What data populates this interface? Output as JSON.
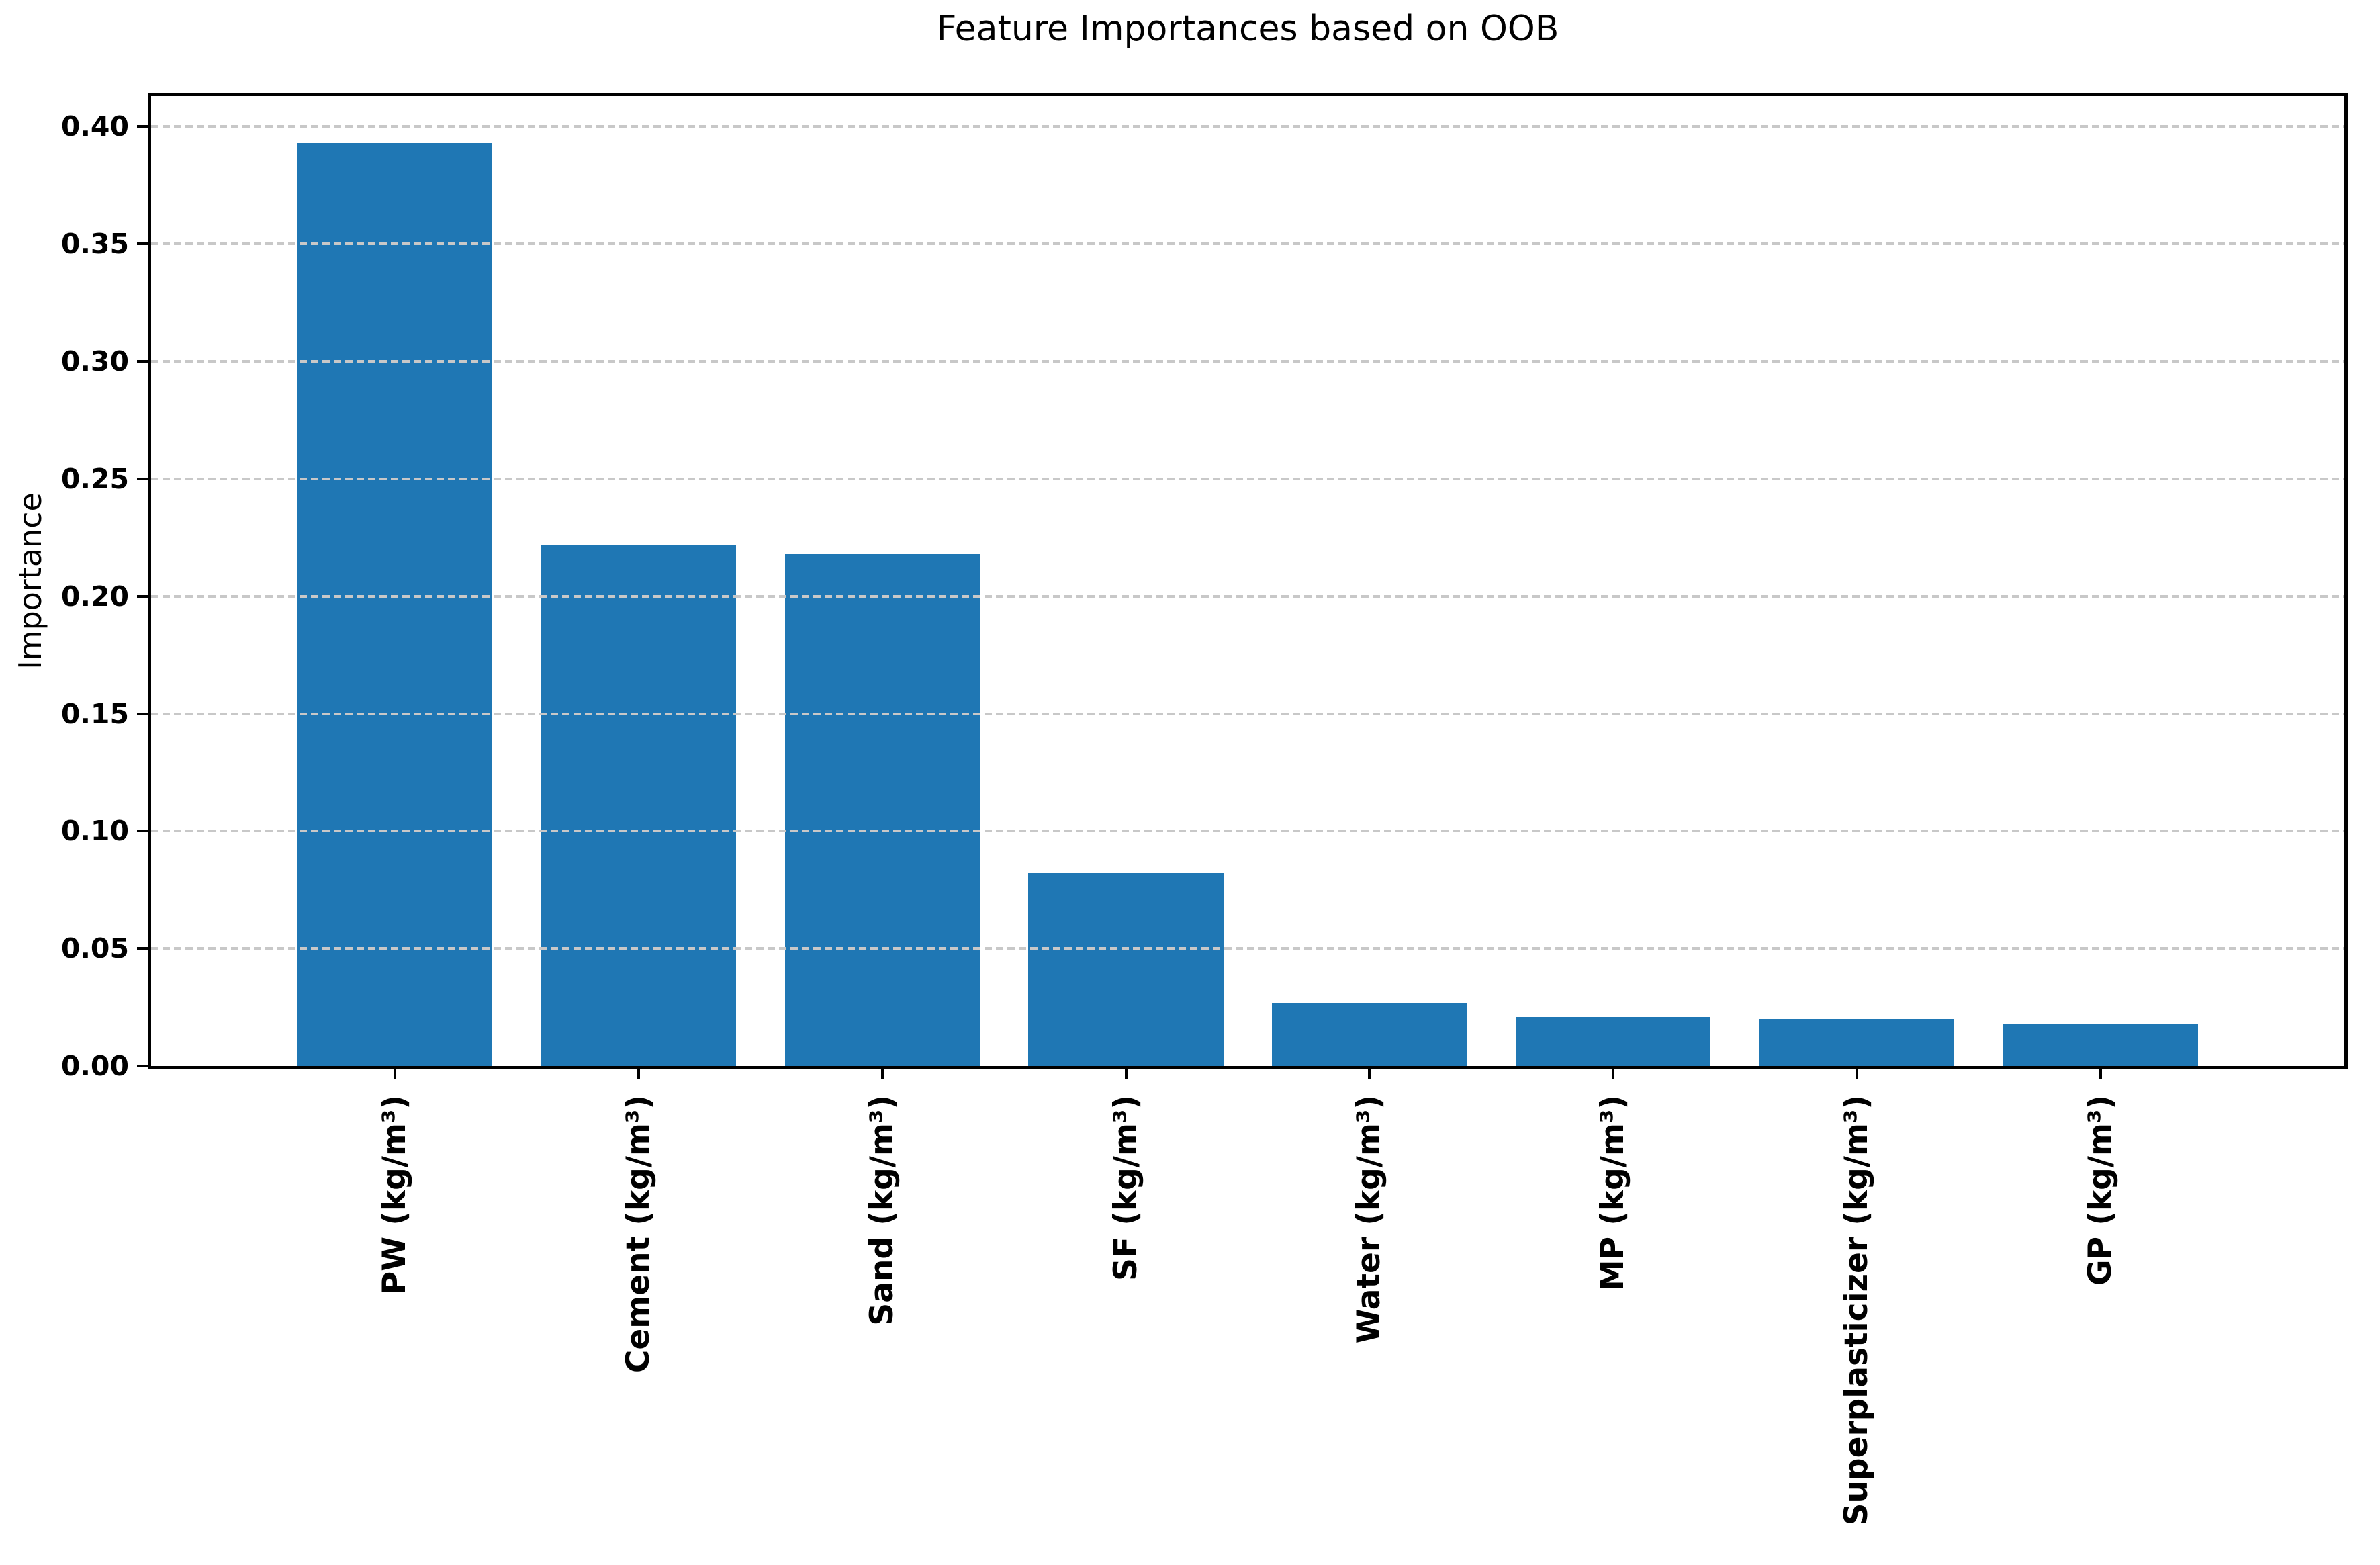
{
  "chart_data": {
    "type": "bar",
    "title": "Feature Importances based on OOB",
    "xlabel": "",
    "ylabel": "Importance",
    "categories": [
      "PW (kg/m³)",
      "Cement (kg/m³)",
      "Sand (kg/m³)",
      "SF (kg/m³)",
      "Water (kg/m³)",
      "MP (kg/m³)",
      "Superplasticizer (kg/m³)",
      "GP (kg/m³)"
    ],
    "values": [
      0.393,
      0.222,
      0.218,
      0.082,
      0.027,
      0.021,
      0.02,
      0.018
    ],
    "ylim": [
      0,
      0.413
    ],
    "ytick_values": [
      0.0,
      0.05,
      0.1,
      0.15,
      0.2,
      0.25,
      0.3,
      0.35,
      0.4
    ],
    "ytick_labels": [
      "0.00",
      "0.05",
      "0.10",
      "0.15",
      "0.20",
      "0.25",
      "0.30",
      "0.35",
      "0.40"
    ],
    "grid": {
      "axis": "y",
      "linestyle": "dashed",
      "color": "#c8c8c8",
      "drawn_over_bars": true
    },
    "legend": null,
    "bar_color": "#1f77b4",
    "axis_color": "#000000",
    "background_color": "#ffffff"
  }
}
